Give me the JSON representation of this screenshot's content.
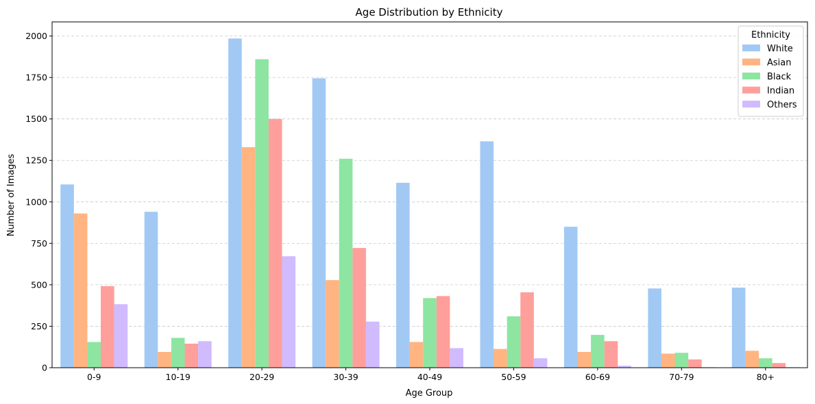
{
  "chart_data": {
    "type": "bar",
    "title": "Age Distribution by Ethnicity",
    "xlabel": "Age Group",
    "ylabel": "Number of Images",
    "categories": [
      "0-9",
      "10-19",
      "20-29",
      "30-39",
      "40-49",
      "50-59",
      "60-69",
      "70-79",
      "80+"
    ],
    "ylim": [
      0,
      2085
    ],
    "yticks": [
      0,
      250,
      500,
      750,
      1000,
      1250,
      1500,
      1750,
      2000
    ],
    "grid": "y-dashed",
    "legend": {
      "title": "Ethnicity",
      "placement": "top-right"
    },
    "series": [
      {
        "name": "White",
        "color": "#a1c9f4",
        "values": [
          1105,
          940,
          1985,
          1745,
          1115,
          1365,
          850,
          478,
          483
        ]
      },
      {
        "name": "Asian",
        "color": "#ffb482",
        "values": [
          930,
          95,
          1330,
          528,
          155,
          113,
          95,
          85,
          102
        ]
      },
      {
        "name": "Black",
        "color": "#8de5a1",
        "values": [
          155,
          180,
          1860,
          1260,
          420,
          310,
          198,
          90,
          57
        ]
      },
      {
        "name": "Indian",
        "color": "#ff9f9b",
        "values": [
          492,
          145,
          1500,
          722,
          432,
          455,
          160,
          50,
          28
        ]
      },
      {
        "name": "Others",
        "color": "#d0bbff",
        "values": [
          383,
          160,
          672,
          278,
          118,
          57,
          12,
          3,
          3
        ]
      }
    ]
  }
}
